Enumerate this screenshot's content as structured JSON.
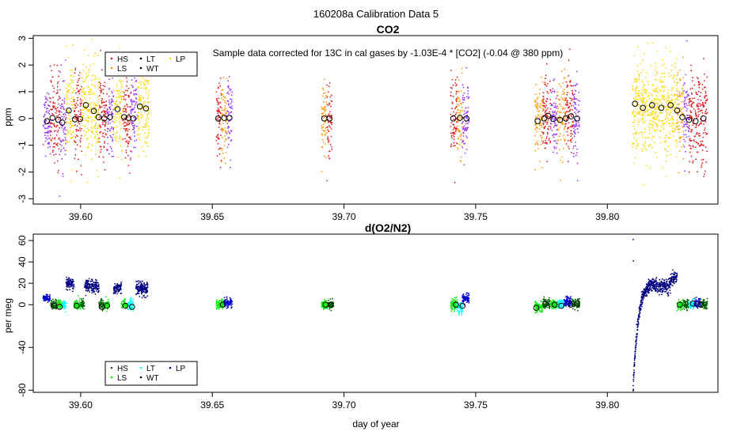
{
  "figure_title": "160208a   Calibration Data 5",
  "xlabel": "day of year",
  "legend_items": [
    {
      "label": "HS",
      "color": "#e41a1c"
    },
    {
      "label": "LT",
      "color": "#1f77b4"
    },
    {
      "label": "LP",
      "color": "#ffff00"
    },
    {
      "label": "LS",
      "color": "#ff9900"
    },
    {
      "label": "WT",
      "color": "#000000"
    }
  ],
  "chart_data": [
    {
      "type": "scatter",
      "title": "CO2",
      "annotation": "Sample data corrected for 13C in cal gases by -1.03E-4 * [CO2] (-0.04 @ 380 ppm)",
      "xlabel": "",
      "ylabel": "ppm",
      "xlim": [
        39.582,
        39.842
      ],
      "ylim": [
        -3.2,
        3.1
      ],
      "xticks": [
        "39.60",
        "39.65",
        "39.70",
        "39.75",
        "39.80"
      ],
      "yticks": [
        "-3",
        "-2",
        "-1",
        "0",
        "1",
        "2",
        "3"
      ],
      "legend": [
        {
          "label": "HS",
          "color": "#e41a1c"
        },
        {
          "label": "LT",
          "color": "#000000"
        },
        {
          "label": "LP",
          "color": "#ffd800"
        },
        {
          "label": "LS",
          "color": "#ff9900"
        },
        {
          "label": "WT",
          "color": "#000000"
        }
      ],
      "clusters": [
        {
          "x0": 39.5858,
          "x1": 39.5885,
          "mean": -0.08,
          "sd": 0.55,
          "color": "#9933ff"
        },
        {
          "x0": 39.5885,
          "x1": 39.592,
          "mean": 0.05,
          "sd": 0.9,
          "color": "#e41a1c"
        },
        {
          "x0": 39.592,
          "x1": 39.5945,
          "mean": -0.12,
          "sd": 0.8,
          "color": "#9933ff"
        },
        {
          "x0": 39.5945,
          "x1": 39.5975,
          "mean": 0.25,
          "sd": 0.9,
          "color": "#ffd800"
        },
        {
          "x0": 39.5975,
          "x1": 39.6005,
          "mean": -0.05,
          "sd": 0.8,
          "color": "#e41a1c"
        },
        {
          "x0": 39.6005,
          "x1": 39.604,
          "mean": 0.45,
          "sd": 1.0,
          "color": "#ffd800"
        },
        {
          "x0": 39.604,
          "x1": 39.607,
          "mean": 0.2,
          "sd": 0.9,
          "color": "#ffd800"
        },
        {
          "x0": 39.607,
          "x1": 39.61,
          "mean": 0.02,
          "sd": 0.8,
          "color": "#e41a1c"
        },
        {
          "x0": 39.61,
          "x1": 39.6125,
          "mean": 0.05,
          "sd": 0.7,
          "color": "#9933ff"
        },
        {
          "x0": 39.6125,
          "x1": 39.616,
          "mean": 0.35,
          "sd": 0.9,
          "color": "#ffd800"
        },
        {
          "x0": 39.616,
          "x1": 39.619,
          "mean": 0.05,
          "sd": 0.8,
          "color": "#e41a1c"
        },
        {
          "x0": 39.619,
          "x1": 39.6215,
          "mean": -0.02,
          "sd": 0.8,
          "color": "#9933ff"
        },
        {
          "x0": 39.6215,
          "x1": 39.626,
          "mean": 0.4,
          "sd": 0.9,
          "color": "#ffd800"
        },
        {
          "x0": 39.6515,
          "x1": 39.6535,
          "mean": 0.0,
          "sd": 0.7,
          "color": "#e41a1c"
        },
        {
          "x0": 39.6535,
          "x1": 39.6555,
          "mean": 0.0,
          "sd": 0.7,
          "color": "#ff9900"
        },
        {
          "x0": 39.6555,
          "x1": 39.6575,
          "mean": 0.0,
          "sd": 0.7,
          "color": "#9933ff"
        },
        {
          "x0": 39.6915,
          "x1": 39.6935,
          "mean": 0.0,
          "sd": 0.7,
          "color": "#ff9900"
        },
        {
          "x0": 39.6935,
          "x1": 39.6955,
          "mean": 0.0,
          "sd": 0.7,
          "color": "#e41a1c"
        },
        {
          "x0": 39.7405,
          "x1": 39.743,
          "mean": -0.05,
          "sd": 0.8,
          "color": "#e41a1c"
        },
        {
          "x0": 39.743,
          "x1": 39.745,
          "mean": 0.05,
          "sd": 0.7,
          "color": "#ff9900"
        },
        {
          "x0": 39.745,
          "x1": 39.7475,
          "mean": 0.0,
          "sd": 0.7,
          "color": "#9933ff"
        },
        {
          "x0": 39.7725,
          "x1": 39.7755,
          "mean": -0.1,
          "sd": 0.75,
          "color": "#ff9900"
        },
        {
          "x0": 39.7755,
          "x1": 39.7785,
          "mean": 0.05,
          "sd": 0.8,
          "color": "#e41a1c"
        },
        {
          "x0": 39.7785,
          "x1": 39.781,
          "mean": -0.05,
          "sd": 0.7,
          "color": "#9933ff"
        },
        {
          "x0": 39.781,
          "x1": 39.784,
          "mean": -0.05,
          "sd": 0.75,
          "color": "#ff9900"
        },
        {
          "x0": 39.784,
          "x1": 39.787,
          "mean": 0.08,
          "sd": 0.8,
          "color": "#e41a1c"
        },
        {
          "x0": 39.787,
          "x1": 39.7895,
          "mean": 0.0,
          "sd": 0.7,
          "color": "#9933ff"
        },
        {
          "x0": 39.8095,
          "x1": 39.813,
          "mean": 0.55,
          "sd": 0.85,
          "color": "#ffd800"
        },
        {
          "x0": 39.813,
          "x1": 39.8165,
          "mean": 0.4,
          "sd": 0.85,
          "color": "#ffd800"
        },
        {
          "x0": 39.8165,
          "x1": 39.82,
          "mean": 0.5,
          "sd": 0.85,
          "color": "#ffd800"
        },
        {
          "x0": 39.82,
          "x1": 39.8235,
          "mean": 0.4,
          "sd": 0.85,
          "color": "#ffd800"
        },
        {
          "x0": 39.8235,
          "x1": 39.8265,
          "mean": 0.45,
          "sd": 0.85,
          "color": "#ffd800"
        },
        {
          "x0": 39.8265,
          "x1": 39.829,
          "mean": 0.2,
          "sd": 0.8,
          "color": "#ff9900"
        },
        {
          "x0": 39.829,
          "x1": 39.831,
          "mean": 0.05,
          "sd": 0.8,
          "color": "#9933ff"
        },
        {
          "x0": 39.831,
          "x1": 39.8345,
          "mean": -0.05,
          "sd": 0.9,
          "color": "#e41a1c"
        },
        {
          "x0": 39.8345,
          "x1": 39.838,
          "mean": 0.0,
          "sd": 0.9,
          "color": "#e41a1c"
        }
      ],
      "means": [
        {
          "x": 39.5872,
          "y": -0.1
        },
        {
          "x": 39.5893,
          "y": 0.02
        },
        {
          "x": 39.5915,
          "y": -0.05
        },
        {
          "x": 39.593,
          "y": -0.15
        },
        {
          "x": 39.5955,
          "y": 0.3
        },
        {
          "x": 39.5978,
          "y": -0.03
        },
        {
          "x": 39.5998,
          "y": -0.02
        },
        {
          "x": 39.602,
          "y": 0.5
        },
        {
          "x": 39.605,
          "y": 0.28
        },
        {
          "x": 39.6068,
          "y": 0.05
        },
        {
          "x": 39.609,
          "y": 0.0
        },
        {
          "x": 39.6112,
          "y": 0.05
        },
        {
          "x": 39.614,
          "y": 0.35
        },
        {
          "x": 39.6165,
          "y": 0.05
        },
        {
          "x": 39.6182,
          "y": 0.02
        },
        {
          "x": 39.62,
          "y": 0.0
        },
        {
          "x": 39.6225,
          "y": 0.45
        },
        {
          "x": 39.6248,
          "y": 0.38
        },
        {
          "x": 39.6522,
          "y": 0.0
        },
        {
          "x": 39.6545,
          "y": 0.02
        },
        {
          "x": 39.6565,
          "y": 0.02
        },
        {
          "x": 39.6925,
          "y": 0.0
        },
        {
          "x": 39.6945,
          "y": 0.0
        },
        {
          "x": 39.7415,
          "y": 0.0
        },
        {
          "x": 39.744,
          "y": 0.02
        },
        {
          "x": 39.7465,
          "y": 0.0
        },
        {
          "x": 39.7735,
          "y": -0.1
        },
        {
          "x": 39.776,
          "y": 0.0
        },
        {
          "x": 39.7775,
          "y": 0.1
        },
        {
          "x": 39.7795,
          "y": -0.02
        },
        {
          "x": 39.782,
          "y": -0.05
        },
        {
          "x": 39.7842,
          "y": 0.0
        },
        {
          "x": 39.7862,
          "y": 0.08
        },
        {
          "x": 39.7885,
          "y": 0.0
        },
        {
          "x": 39.8105,
          "y": 0.55
        },
        {
          "x": 39.8135,
          "y": 0.4
        },
        {
          "x": 39.817,
          "y": 0.5
        },
        {
          "x": 39.8205,
          "y": 0.4
        },
        {
          "x": 39.824,
          "y": 0.5
        },
        {
          "x": 39.8265,
          "y": 0.3
        },
        {
          "x": 39.8285,
          "y": 0.05
        },
        {
          "x": 39.831,
          "y": -0.05
        },
        {
          "x": 39.8335,
          "y": -0.1
        },
        {
          "x": 39.8365,
          "y": 0.0
        }
      ]
    },
    {
      "type": "scatter",
      "title": "d(O2/N2)",
      "xlabel": "day of year",
      "ylabel": "per meg",
      "xlim": [
        39.582,
        39.842
      ],
      "ylim": [
        -82,
        66
      ],
      "xticks": [
        "39.60",
        "39.65",
        "39.70",
        "39.75",
        "39.80"
      ],
      "yticks": [
        "-80",
        "-40",
        "0",
        "20",
        "40",
        "60"
      ],
      "legend": [
        {
          "label": "HS",
          "color": "#006400"
        },
        {
          "label": "LT",
          "color": "#00ffff"
        },
        {
          "label": "LP",
          "color": "#00008b"
        },
        {
          "label": "LS",
          "color": "#00ee00"
        },
        {
          "label": "WT",
          "color": "#000000"
        }
      ],
      "clusters": [
        {
          "x0": 39.5858,
          "x1": 39.5885,
          "mean": 6,
          "sd": 1.5,
          "color": "#0000cd"
        },
        {
          "x0": 39.5885,
          "x1": 39.591,
          "mean": 0,
          "sd": 2.2,
          "color": "#006400"
        },
        {
          "x0": 39.591,
          "x1": 39.593,
          "mean": 0,
          "sd": 2.2,
          "color": "#00ee00"
        },
        {
          "x0": 39.593,
          "x1": 39.5945,
          "mean": 0,
          "sd": 2.2,
          "color": "#00ffff"
        },
        {
          "x0": 39.5945,
          "x1": 39.5975,
          "mean": 20,
          "sd": 2.5,
          "color": "#000080"
        },
        {
          "x0": 39.5975,
          "x1": 39.6,
          "mean": 0,
          "sd": 2.2,
          "color": "#00ee00"
        },
        {
          "x0": 39.6,
          "x1": 39.6015,
          "mean": 0,
          "sd": 2.2,
          "color": "#006400"
        },
        {
          "x0": 39.6015,
          "x1": 39.6045,
          "mean": 18,
          "sd": 3,
          "color": "#000080"
        },
        {
          "x0": 39.6045,
          "x1": 39.607,
          "mean": 17,
          "sd": 3,
          "color": "#000080"
        },
        {
          "x0": 39.607,
          "x1": 39.609,
          "mean": 0,
          "sd": 2.2,
          "color": "#006400"
        },
        {
          "x0": 39.609,
          "x1": 39.611,
          "mean": 0,
          "sd": 2.2,
          "color": "#00ee00"
        },
        {
          "x0": 39.6125,
          "x1": 39.6155,
          "mean": 15,
          "sd": 3,
          "color": "#000080"
        },
        {
          "x0": 39.6155,
          "x1": 39.618,
          "mean": 0,
          "sd": 2.2,
          "color": "#00ee00"
        },
        {
          "x0": 39.618,
          "x1": 39.62,
          "mean": 0,
          "sd": 2.2,
          "color": "#00ffff"
        },
        {
          "x0": 39.621,
          "x1": 39.6255,
          "mean": 15,
          "sd": 3.5,
          "color": "#000080"
        },
        {
          "x0": 39.6515,
          "x1": 39.6545,
          "mean": 0,
          "sd": 2,
          "color": "#00ee00"
        },
        {
          "x0": 39.6545,
          "x1": 39.6575,
          "mean": 2,
          "sd": 2,
          "color": "#0000cd"
        },
        {
          "x0": 39.6915,
          "x1": 39.694,
          "mean": 0,
          "sd": 2,
          "color": "#00ee00"
        },
        {
          "x0": 39.694,
          "x1": 39.696,
          "mean": 0,
          "sd": 2,
          "color": "#006400"
        },
        {
          "x0": 39.7405,
          "x1": 39.743,
          "mean": 0,
          "sd": 2.5,
          "color": "#00ee00"
        },
        {
          "x0": 39.743,
          "x1": 39.745,
          "mean": -3,
          "sd": 3,
          "color": "#00ffff"
        },
        {
          "x0": 39.745,
          "x1": 39.7475,
          "mean": 6,
          "sd": 2.5,
          "color": "#0000cd"
        },
        {
          "x0": 39.7725,
          "x1": 39.7755,
          "mean": -2,
          "sd": 2.2,
          "color": "#00ee00"
        },
        {
          "x0": 39.7755,
          "x1": 39.7785,
          "mean": 1,
          "sd": 2.2,
          "color": "#006400"
        },
        {
          "x0": 39.7785,
          "x1": 39.781,
          "mean": 0,
          "sd": 2.2,
          "color": "#00ee00"
        },
        {
          "x0": 39.781,
          "x1": 39.7835,
          "mean": 0,
          "sd": 2.2,
          "color": "#00ffff"
        },
        {
          "x0": 39.7835,
          "x1": 39.7865,
          "mean": 3,
          "sd": 2.2,
          "color": "#0000cd"
        },
        {
          "x0": 39.7865,
          "x1": 39.7895,
          "mean": 1,
          "sd": 2.2,
          "color": "#006400"
        },
        {
          "x0": 39.8155,
          "x1": 39.82,
          "mean": 18,
          "sd": 3,
          "color": "#000080"
        },
        {
          "x0": 39.82,
          "x1": 39.824,
          "mean": 17,
          "sd": 3.5,
          "color": "#000080"
        },
        {
          "x0": 39.824,
          "x1": 39.8265,
          "mean": 24,
          "sd": 3,
          "color": "#000080"
        },
        {
          "x0": 39.8265,
          "x1": 39.829,
          "mean": 0,
          "sd": 2.2,
          "color": "#00ee00"
        },
        {
          "x0": 39.829,
          "x1": 39.831,
          "mean": 0,
          "sd": 2.2,
          "color": "#006400"
        },
        {
          "x0": 39.831,
          "x1": 39.833,
          "mean": 0,
          "sd": 2.2,
          "color": "#00ffff"
        },
        {
          "x0": 39.833,
          "x1": 39.8355,
          "mean": 2,
          "sd": 2.2,
          "color": "#0000cd"
        },
        {
          "x0": 39.8355,
          "x1": 39.838,
          "mean": 0,
          "sd": 2.2,
          "color": "#006400"
        }
      ],
      "transient": {
        "x0": 39.8098,
        "x1": 39.8158,
        "start": -78,
        "end": 17,
        "spike": 61,
        "color": "#000080"
      },
      "means": [
        {
          "x": 39.59,
          "y": -1
        },
        {
          "x": 39.592,
          "y": -2
        },
        {
          "x": 39.5985,
          "y": -1
        },
        {
          "x": 39.608,
          "y": -2
        },
        {
          "x": 39.61,
          "y": -1
        },
        {
          "x": 39.617,
          "y": -1
        },
        {
          "x": 39.6195,
          "y": -2
        },
        {
          "x": 39.654,
          "y": 0
        },
        {
          "x": 39.693,
          "y": 0
        },
        {
          "x": 39.695,
          "y": 0
        },
        {
          "x": 39.7425,
          "y": 0
        },
        {
          "x": 39.745,
          "y": -1
        },
        {
          "x": 39.773,
          "y": -3
        },
        {
          "x": 39.7765,
          "y": 1
        },
        {
          "x": 39.78,
          "y": 0
        },
        {
          "x": 39.7825,
          "y": -1
        },
        {
          "x": 39.786,
          "y": 0
        },
        {
          "x": 39.7885,
          "y": 1
        },
        {
          "x": 39.8275,
          "y": 0
        },
        {
          "x": 39.8325,
          "y": 1
        },
        {
          "x": 39.8355,
          "y": 0
        }
      ]
    }
  ]
}
